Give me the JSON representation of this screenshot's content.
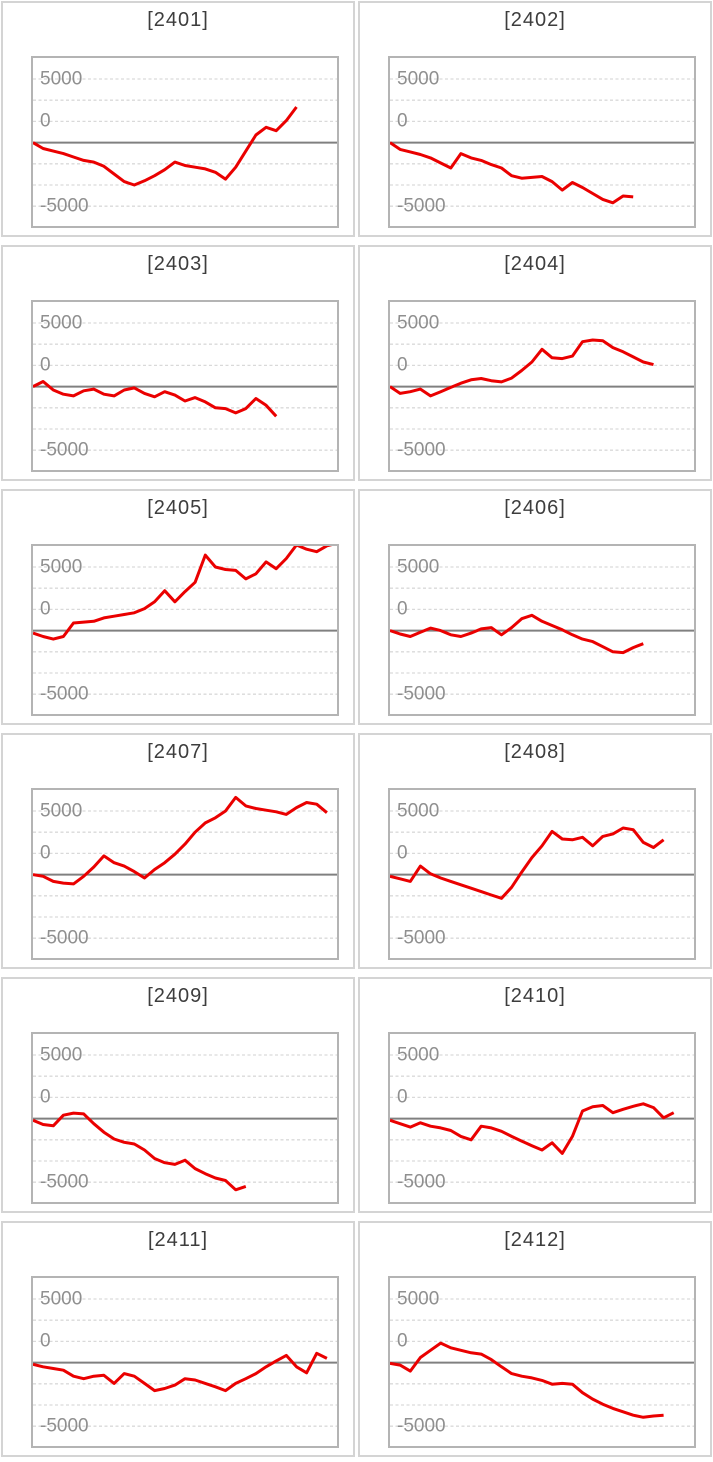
{
  "style": {
    "series_red": "#ea0000",
    "zero_axis_gray": "#808080",
    "gridline_gray": "#d9d9d9",
    "tick_label_gray": "#8f8f8f",
    "title_gray": "#3d3d3d",
    "plot_border_gray": "#b4b4b4",
    "panel_border_gray": "#d4d4d4"
  },
  "chart_config": {
    "type": "line",
    "yticks_labels": [
      "5000",
      "0",
      "-5000"
    ],
    "yticks_values": [
      5000,
      0,
      -5000
    ],
    "ylim": [
      -10100,
      10100
    ],
    "minor_grid_unit": 2500,
    "grid_style": "dotted-horizontal",
    "zero_axis": "solid",
    "legend": "none",
    "x_slots": 31
  },
  "chart_data": [
    {
      "title": "[2401]",
      "values": [
        0,
        -700,
        -1000,
        -1300,
        -1700,
        -2100,
        -2300,
        -2800,
        -3700,
        -4600,
        -5000,
        -4500,
        -3900,
        -3200,
        -2300,
        -2700,
        -2900,
        -3100,
        -3500,
        -4300,
        -2900,
        -1000,
        900,
        1800,
        1400,
        2600,
        4200
      ]
    },
    {
      "title": "[2402]",
      "values": [
        0,
        -800,
        -1100,
        -1400,
        -1800,
        -2400,
        -3000,
        -1300,
        -1800,
        -2100,
        -2600,
        -3000,
        -3900,
        -4200,
        -4100,
        -4000,
        -4600,
        -5600,
        -4700,
        -5300,
        -6000,
        -6700,
        -7100,
        -6300,
        -6400
      ]
    },
    {
      "title": "[2403]",
      "values": [
        0,
        600,
        -400,
        -900,
        -1100,
        -500,
        -300,
        -900,
        -1100,
        -400,
        -150,
        -800,
        -1200,
        -600,
        -1000,
        -1700,
        -1300,
        -1800,
        -2500,
        -2600,
        -3100,
        -2600,
        -1400,
        -2200,
        -3500
      ]
    },
    {
      "title": "[2404]",
      "values": [
        0,
        -800,
        -600,
        -300,
        -1100,
        -600,
        -100,
        400,
        800,
        950,
        700,
        550,
        1000,
        1900,
        2900,
        4400,
        3400,
        3300,
        3600,
        5300,
        5500,
        5400,
        4600,
        4100,
        3500,
        2900,
        2600
      ]
    },
    {
      "title": "[2405]",
      "values": [
        -300,
        -700,
        -1000,
        -700,
        900,
        1000,
        1100,
        1500,
        1700,
        1900,
        2100,
        2600,
        3400,
        4700,
        3400,
        4600,
        5700,
        8900,
        7500,
        7200,
        7100,
        6100,
        6700,
        8100,
        7300,
        8500,
        10100,
        9600,
        9300,
        10000,
        10300
      ]
    },
    {
      "title": "[2406]",
      "values": [
        0,
        -400,
        -700,
        -200,
        300,
        0,
        -500,
        -700,
        -300,
        200,
        350,
        -500,
        350,
        1400,
        1800,
        1100,
        600,
        100,
        -500,
        -1000,
        -1300,
        -1900,
        -2500,
        -2600,
        -2000,
        -1550
      ]
    },
    {
      "title": "[2407]",
      "values": [
        0,
        -200,
        -800,
        -1000,
        -1100,
        -200,
        900,
        2200,
        1400,
        1000,
        350,
        -400,
        600,
        1400,
        2400,
        3600,
        5000,
        6100,
        6700,
        7500,
        9100,
        8100,
        7800,
        7600,
        7400,
        7100,
        7900,
        8500,
        8300,
        7300
      ]
    },
    {
      "title": "[2408]",
      "values": [
        -200,
        -500,
        -800,
        1000,
        100,
        -400,
        -800,
        -1200,
        -1600,
        -2000,
        -2400,
        -2800,
        -1500,
        300,
        2000,
        3400,
        5100,
        4200,
        4100,
        4400,
        3400,
        4500,
        4800,
        5500,
        5300,
        3800,
        3200,
        4100
      ]
    },
    {
      "title": "[2409]",
      "values": [
        -200,
        -700,
        -850,
        400,
        650,
        550,
        -600,
        -1600,
        -2400,
        -2800,
        -3000,
        -3700,
        -4700,
        -5200,
        -5400,
        -4900,
        -5900,
        -6500,
        -7000,
        -7300,
        -8400,
        -8000
      ]
    },
    {
      "title": "[2410]",
      "values": [
        -200,
        -600,
        -1000,
        -500,
        -900,
        -1100,
        -1400,
        -2100,
        -2500,
        -900,
        -1100,
        -1500,
        -2100,
        -2650,
        -3200,
        -3700,
        -2850,
        -4100,
        -2100,
        900,
        1400,
        1550,
        700,
        1100,
        1450,
        1750,
        1300,
        100,
        700
      ]
    },
    {
      "title": "[2411]",
      "values": [
        -200,
        -500,
        -700,
        -900,
        -1600,
        -1900,
        -1600,
        -1500,
        -2450,
        -1300,
        -1600,
        -2450,
        -3300,
        -3050,
        -2650,
        -1900,
        -2050,
        -2450,
        -2850,
        -3300,
        -2450,
        -1900,
        -1300,
        -500,
        200,
        850,
        -500,
        -1200,
        1100,
        500
      ]
    },
    {
      "title": "[2412]",
      "values": [
        -100,
        -300,
        -1000,
        600,
        1450,
        2300,
        1750,
        1450,
        1150,
        1000,
        350,
        -500,
        -1300,
        -1600,
        -1800,
        -2100,
        -2550,
        -2450,
        -2550,
        -3550,
        -4300,
        -4900,
        -5400,
        -5800,
        -6200,
        -6450,
        -6300,
        -6200
      ]
    }
  ]
}
